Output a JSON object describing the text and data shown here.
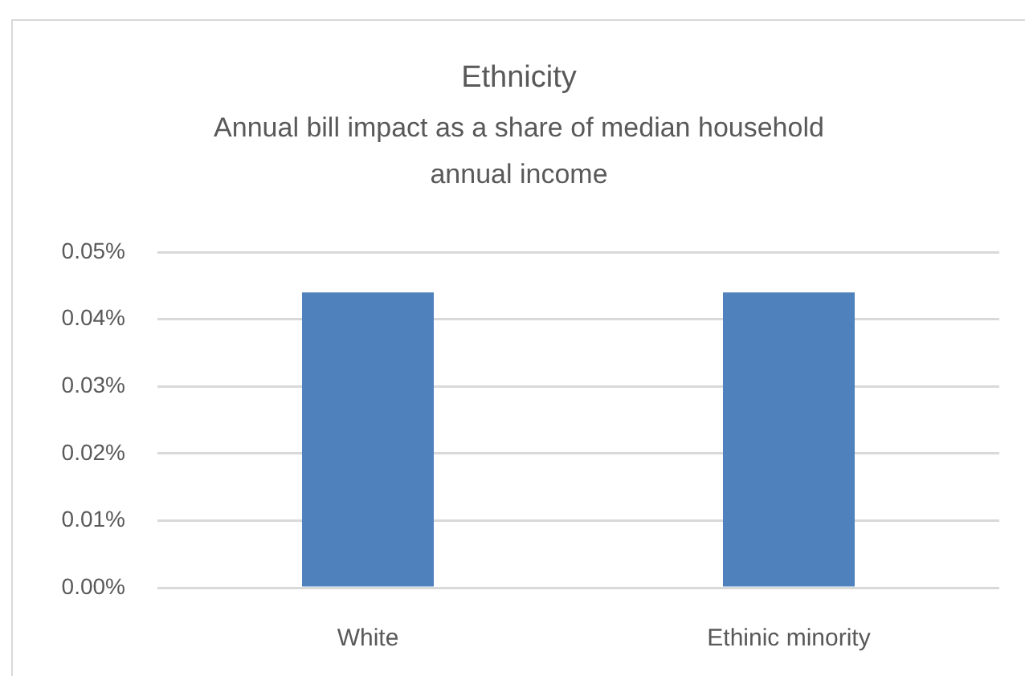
{
  "chart_data": {
    "type": "bar",
    "title": "Ethnicity",
    "subtitle": "Annual bill impact as a share of median household annual income",
    "categories": [
      "White",
      "Ethinic minority"
    ],
    "values": [
      0.044,
      0.044
    ],
    "color": "#4f81bd",
    "ylim": [
      0,
      0.05
    ],
    "yticks": [
      {
        "value": 0,
        "label": "0.00%"
      },
      {
        "value": 0.01,
        "label": "0.01%"
      },
      {
        "value": 0.02,
        "label": "0.02%"
      },
      {
        "value": 0.03,
        "label": "0.03%"
      },
      {
        "value": 0.04,
        "label": "0.04%"
      },
      {
        "value": 0.05,
        "label": "0.05%"
      }
    ],
    "grid": "y"
  }
}
